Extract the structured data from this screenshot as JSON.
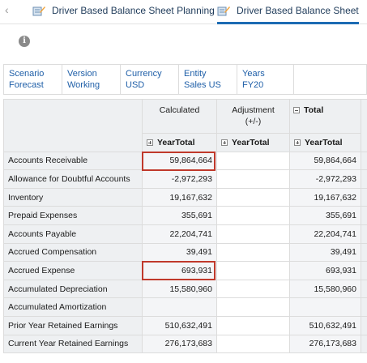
{
  "tabs": [
    {
      "label": "Driver Based Balance Sheet Planning",
      "active": false
    },
    {
      "label": "Driver Based Balance Sheet",
      "active": true
    }
  ],
  "pov": [
    {
      "dimension": "Scenario",
      "member": "Forecast"
    },
    {
      "dimension": "Version",
      "member": "Working"
    },
    {
      "dimension": "Currency",
      "member": "USD"
    },
    {
      "dimension": "Entity",
      "member": "Sales US"
    },
    {
      "dimension": "Years",
      "member": "FY20"
    }
  ],
  "columns": {
    "calculated": "Calculated",
    "adjustment_line1": "Adjustment",
    "adjustment_line2": "(+/-)",
    "total": "Total",
    "period": "YearTotal"
  },
  "rows": [
    {
      "label": "Accounts Receivable",
      "calculated": "59,864,664",
      "adjustment": "",
      "total": "59,864,664"
    },
    {
      "label": "Allowance for Doubtful Accounts",
      "calculated": "-2,972,293",
      "adjustment": "",
      "total": "-2,972,293"
    },
    {
      "label": "Inventory",
      "calculated": "19,167,632",
      "adjustment": "",
      "total": "19,167,632"
    },
    {
      "label": "Prepaid Expenses",
      "calculated": "355,691",
      "adjustment": "",
      "total": "355,691"
    },
    {
      "label": "Accounts Payable",
      "calculated": "22,204,741",
      "adjustment": "",
      "total": "22,204,741"
    },
    {
      "label": "Accrued Compensation",
      "calculated": "39,491",
      "adjustment": "",
      "total": "39,491"
    },
    {
      "label": "Accrued Expense",
      "calculated": "693,931",
      "adjustment": "",
      "total": "693,931"
    },
    {
      "label": "Accumulated Depreciation",
      "calculated": "15,580,960",
      "adjustment": "",
      "total": "15,580,960"
    },
    {
      "label": "Accumulated Amortization",
      "calculated": "",
      "adjustment": "",
      "total": ""
    },
    {
      "label": "Prior Year Retained Earnings",
      "calculated": "510,632,491",
      "adjustment": "",
      "total": "510,632,491"
    },
    {
      "label": "Current Year Retained Earnings",
      "calculated": "276,173,683",
      "adjustment": "",
      "total": "276,173,683"
    }
  ],
  "colors": {
    "accent": "#1c6bb3",
    "highlight": "#c0392b",
    "link": "#1f5fa8"
  }
}
